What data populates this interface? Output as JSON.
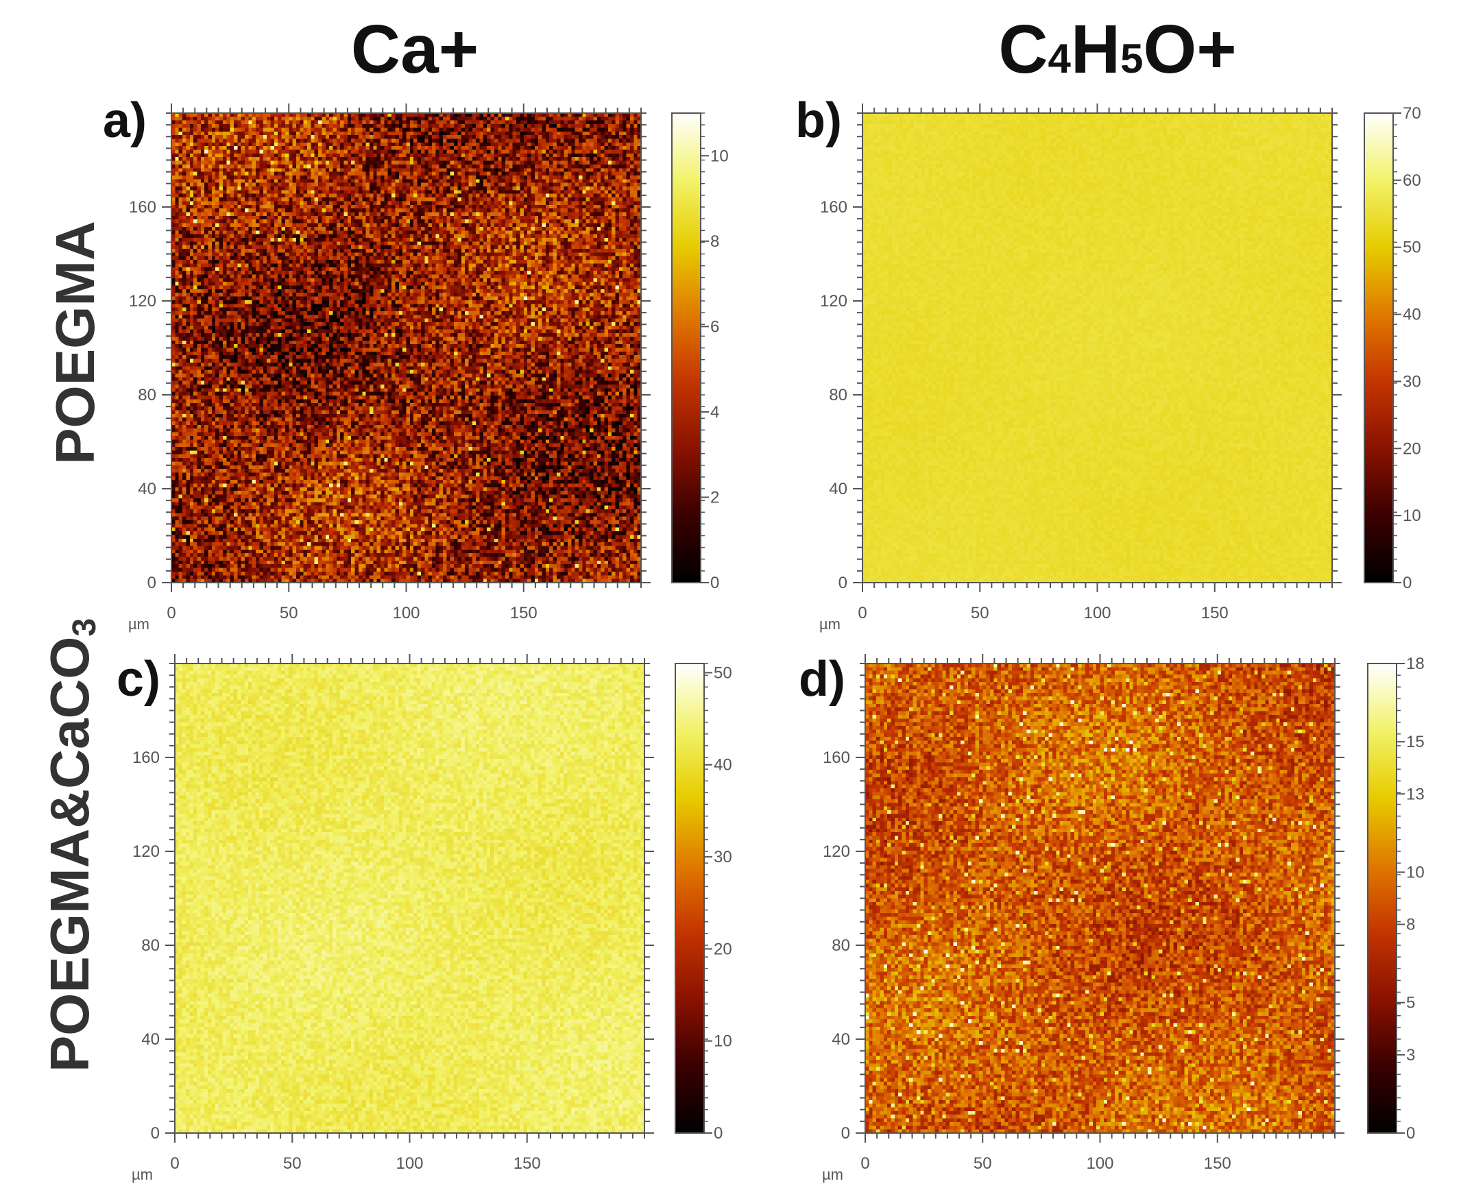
{
  "columns": [
    {
      "main": "Ca+",
      "sub": ""
    },
    {
      "main": "C",
      "sub": "4",
      "main2": "H",
      "sub2": "5",
      "main3": "O+"
    }
  ],
  "rows": [
    {
      "label": "POEGMA",
      "sub": ""
    },
    {
      "label": "POEGMA&CaCO",
      "sub": "3"
    }
  ],
  "axis_unit": "µm",
  "chart_data": [
    {
      "type": "heatmap",
      "panel": "a)",
      "ion": "Ca+",
      "sample": "POEGMA",
      "x_range": [
        0,
        200
      ],
      "y_range": [
        0,
        200
      ],
      "x_ticks": [
        0,
        50,
        100,
        150
      ],
      "y_ticks": [
        0,
        40,
        80,
        120,
        160
      ],
      "xlabel": "µm",
      "colorbar_range": [
        0,
        11
      ],
      "colorbar_ticks": [
        0,
        2,
        4,
        6,
        8,
        10
      ],
      "colormap": [
        "#000000",
        "#3a0000",
        "#8a1200",
        "#c43500",
        "#e07a00",
        "#e6cc00",
        "#f2f26a",
        "#ffffff"
      ],
      "mean_level": 0.32,
      "noise": 0.3
    },
    {
      "type": "heatmap",
      "panel": "b)",
      "ion": "C4H5O+",
      "sample": "POEGMA",
      "x_range": [
        0,
        200
      ],
      "y_range": [
        0,
        200
      ],
      "x_ticks": [
        0,
        50,
        100,
        150
      ],
      "y_ticks": [
        0,
        40,
        80,
        120,
        160
      ],
      "xlabel": "µm",
      "colorbar_range": [
        0,
        70
      ],
      "colorbar_ticks": [
        0,
        10,
        20,
        30,
        40,
        50,
        60,
        70
      ],
      "colormap": [
        "#000000",
        "#3a0000",
        "#8a1200",
        "#c43500",
        "#e07a00",
        "#e6cc00",
        "#f2f26a",
        "#ffffff"
      ],
      "mean_level": 0.78,
      "noise": 0.02
    },
    {
      "type": "heatmap",
      "panel": "c)",
      "ion": "Ca+",
      "sample": "POEGMA&CaCO3",
      "x_range": [
        0,
        200
      ],
      "y_range": [
        0,
        200
      ],
      "x_ticks": [
        0,
        50,
        100,
        150
      ],
      "y_ticks": [
        0,
        40,
        80,
        120,
        160
      ],
      "xlabel": "µm",
      "colorbar_range": [
        0,
        51
      ],
      "colorbar_ticks": [
        0,
        10,
        20,
        30,
        40,
        50
      ],
      "colormap": [
        "#000000",
        "#3a0000",
        "#8a1200",
        "#c43500",
        "#e07a00",
        "#e6cc00",
        "#f2f26a",
        "#ffffff"
      ],
      "mean_level": 0.84,
      "noise": 0.06
    },
    {
      "type": "heatmap",
      "panel": "d)",
      "ion": "C4H5O+",
      "sample": "POEGMA&CaCO3",
      "x_range": [
        0,
        200
      ],
      "y_range": [
        0,
        200
      ],
      "x_ticks": [
        0,
        50,
        100,
        150
      ],
      "y_ticks": [
        0,
        40,
        80,
        120,
        160
      ],
      "xlabel": "µm",
      "colorbar_range": [
        0,
        18
      ],
      "colorbar_ticks": [
        0,
        3,
        5,
        8,
        10,
        13,
        15,
        18
      ],
      "colormap": [
        "#000000",
        "#3a0000",
        "#8a1200",
        "#c43500",
        "#e07a00",
        "#e6cc00",
        "#f2f26a",
        "#ffffff"
      ],
      "mean_level": 0.5,
      "noise": 0.18
    }
  ]
}
